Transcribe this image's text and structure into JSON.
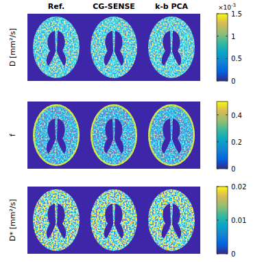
{
  "column_titles": [
    "Ref.",
    "CG-SENSE",
    "k-b PCA"
  ],
  "chart_data": [
    {
      "type": "image",
      "ylabel": "D [mm²/s]",
      "colorbar": {
        "lim": [
          0,
          0.0015
        ],
        "ticks": [
          0,
          {
            "value": 0.0005,
            "label": "0.5"
          },
          {
            "value": 0.001,
            "label": "1"
          },
          {
            "value": 0.0015,
            "label": "1.5"
          }
        ],
        "multiplier": {
          "base": "×10",
          "exponent": "-3"
        }
      }
    },
    {
      "type": "image",
      "ylabel": "f",
      "colorbar": {
        "lim": [
          0,
          0.5
        ],
        "ticks": [
          0,
          0.2,
          0.4
        ]
      }
    },
    {
      "type": "image",
      "ylabel": "D* [mm²/s]",
      "colorbar": {
        "lim": [
          0,
          0.02
        ],
        "ticks": [
          0,
          0.01,
          0.02
        ]
      }
    }
  ]
}
